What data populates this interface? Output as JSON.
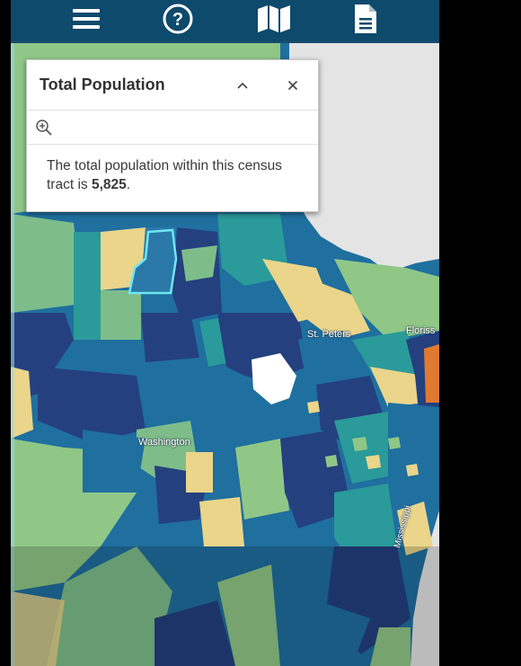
{
  "toolbar": {
    "items": [
      {
        "name": "menu-icon"
      },
      {
        "name": "help-icon"
      },
      {
        "name": "map-icon"
      },
      {
        "name": "document-icon"
      }
    ]
  },
  "popup": {
    "title": "Total Population",
    "body_prefix": "The total population within this census tract is ",
    "population_value": "5,825",
    "body_suffix": "."
  },
  "map": {
    "labels": {
      "st_peters": "St. Peters",
      "florissant": "Floriss",
      "washington": "Washington",
      "river": "Mississippi"
    },
    "colors": {
      "navy": "#24407f",
      "blue": "#1f6f9f",
      "teal": "#2a9a9a",
      "lightgreen": "#90c787",
      "sage": "#7ebd8a",
      "yellow": "#ead58a",
      "orange": "#e07a30",
      "water": "#e4e4e4",
      "selected_outline": "#6fe6f2"
    }
  }
}
